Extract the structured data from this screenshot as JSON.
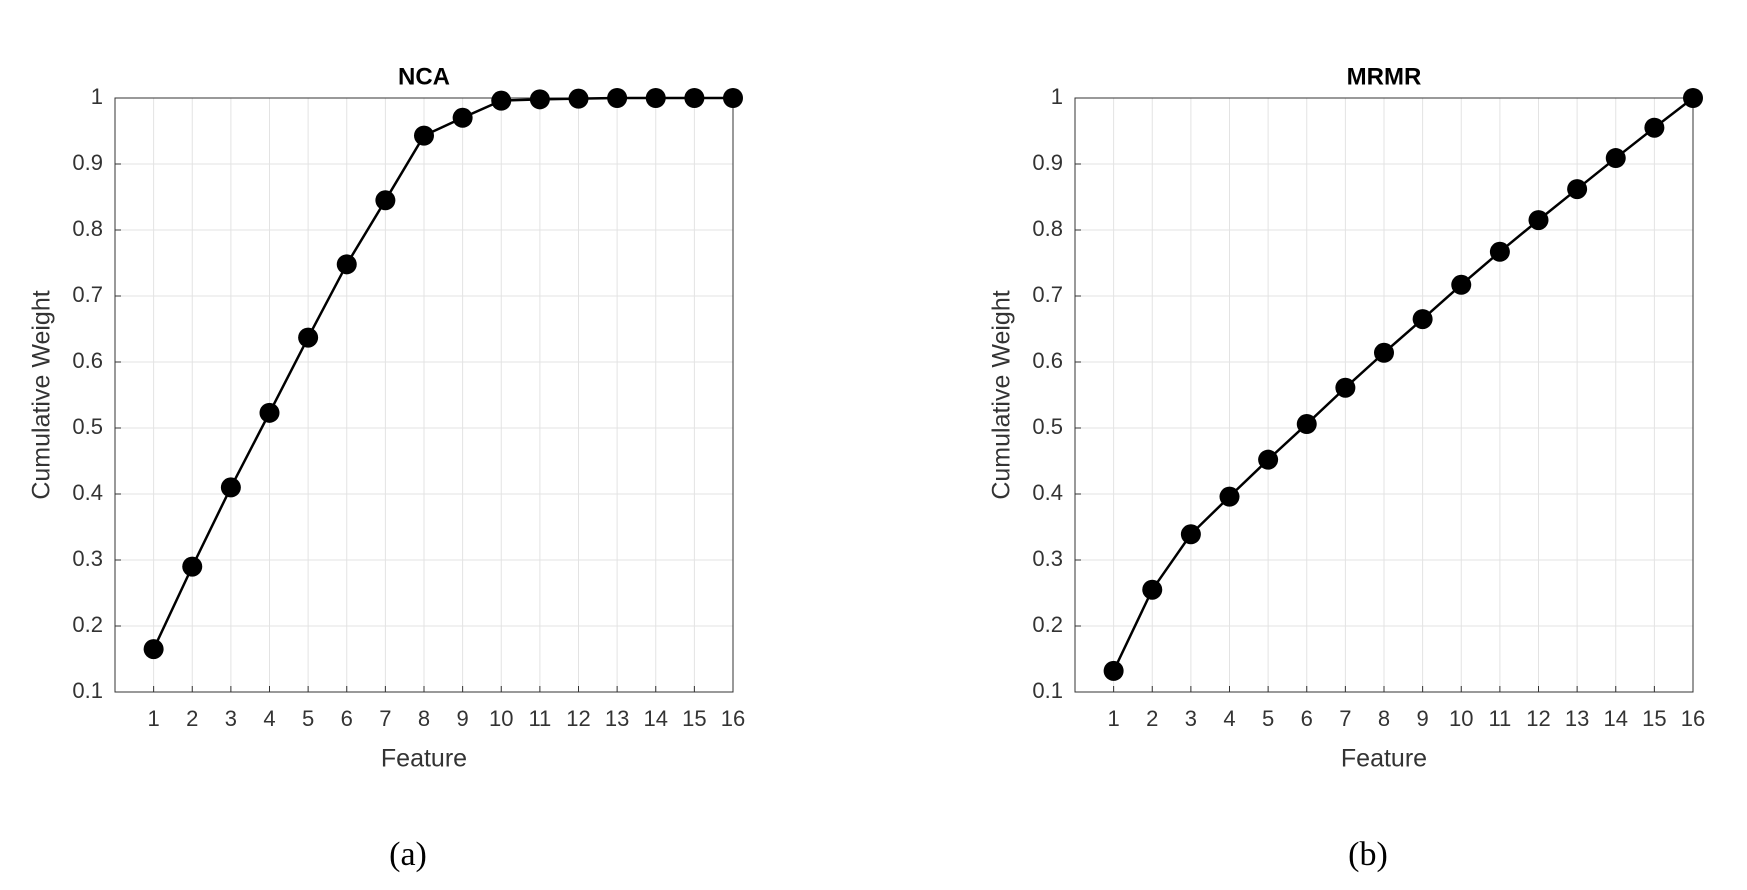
{
  "chart_data": [
    {
      "type": "line",
      "title": "NCA",
      "xlabel": "Feature",
      "ylabel": "Cumulative Weight",
      "caption": "(a)",
      "x": [
        1,
        2,
        3,
        4,
        5,
        6,
        7,
        8,
        9,
        10,
        11,
        12,
        13,
        14,
        15,
        16
      ],
      "series": [
        {
          "color": "#000000",
          "values": [
            0.165,
            0.29,
            0.41,
            0.523,
            0.637,
            0.748,
            0.845,
            0.943,
            0.97,
            0.996,
            0.998,
            0.999,
            1,
            1,
            1,
            1
          ]
        }
      ],
      "xlim": [
        0,
        16
      ],
      "xticks": [
        1,
        2,
        3,
        4,
        5,
        6,
        7,
        8,
        9,
        10,
        11,
        12,
        13,
        14,
        15,
        16
      ],
      "ylim": [
        0.1,
        1
      ],
      "yticks": [
        0.1,
        0.2,
        0.3,
        0.4,
        0.5,
        0.6,
        0.7,
        0.8,
        0.9,
        1
      ],
      "grid": true
    },
    {
      "type": "line",
      "title": "MRMR",
      "xlabel": "Feature",
      "ylabel": "Cumulative Weight",
      "caption": "(b)",
      "x": [
        1,
        2,
        3,
        4,
        5,
        6,
        7,
        8,
        9,
        10,
        11,
        12,
        13,
        14,
        15,
        16
      ],
      "series": [
        {
          "color": "#000000",
          "values": [
            0.132,
            0.255,
            0.339,
            0.396,
            0.452,
            0.506,
            0.561,
            0.614,
            0.665,
            0.717,
            0.767,
            0.815,
            0.862,
            0.909,
            0.955,
            1
          ]
        }
      ],
      "xlim": [
        0,
        16
      ],
      "xticks": [
        1,
        2,
        3,
        4,
        5,
        6,
        7,
        8,
        9,
        10,
        11,
        12,
        13,
        14,
        15,
        16
      ],
      "ylim": [
        0.1,
        1
      ],
      "yticks": [
        0.1,
        0.2,
        0.3,
        0.4,
        0.5,
        0.6,
        0.7,
        0.8,
        0.9,
        1
      ],
      "grid": true
    }
  ]
}
